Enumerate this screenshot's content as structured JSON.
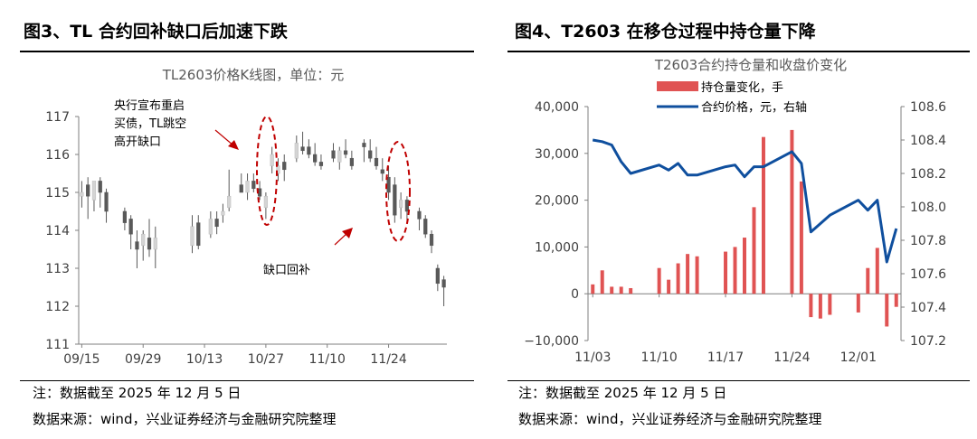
{
  "left": {
    "figure_title": "图3、TL 合约回补缺口后加速下跌",
    "note": "注：数据截至 2025 年 12 月 5 日",
    "source": "数据来源：wind，兴业证券经济与金融研究院整理",
    "annotations": {
      "pboc_lines": [
        "央行宣布重启",
        "买债，TL跳空",
        "高开缺口"
      ],
      "gap_fill": "缺口回补"
    },
    "chart_data": {
      "type": "candlestick",
      "title": "TL2603价格K线图，单位：元",
      "ylim": [
        111,
        117
      ],
      "yticks": [
        "111",
        "112",
        "113",
        "114",
        "115",
        "116",
        "117"
      ],
      "xticks": [
        "09/15",
        "09/29",
        "10/13",
        "10/27",
        "11/10",
        "11/24"
      ],
      "xtick_index": [
        0,
        10,
        20,
        30,
        40,
        50
      ],
      "candles": [
        {
          "o": 114.9,
          "h": 115.3,
          "l": 114.6,
          "c": 115.0
        },
        {
          "o": 115.2,
          "h": 115.4,
          "l": 114.3,
          "c": 114.9
        },
        {
          "o": 114.8,
          "h": 115.1,
          "l": 114.5,
          "c": 115.3
        },
        {
          "o": 115.3,
          "h": 115.4,
          "l": 114.6,
          "c": 115.0
        },
        {
          "o": 115.0,
          "h": 115.1,
          "l": 114.2,
          "c": 114.5
        },
        null,
        null,
        {
          "o": 114.5,
          "h": 114.6,
          "l": 114.0,
          "c": 114.2
        },
        {
          "o": 114.3,
          "h": 114.4,
          "l": 113.5,
          "c": 113.9
        },
        {
          "o": 113.7,
          "h": 114.0,
          "l": 113.0,
          "c": 113.5
        },
        {
          "o": 113.6,
          "h": 114.0,
          "l": 113.2,
          "c": 113.9
        },
        {
          "o": 113.8,
          "h": 114.3,
          "l": 113.3,
          "c": 113.5
        },
        {
          "o": 113.5,
          "h": 114.1,
          "l": 113.0,
          "c": 113.8
        },
        null,
        null,
        null,
        null,
        null,
        {
          "o": 113.6,
          "h": 114.4,
          "l": 113.4,
          "c": 114.1
        },
        {
          "o": 114.2,
          "h": 114.4,
          "l": 113.5,
          "c": 113.6
        },
        null,
        {
          "o": 113.9,
          "h": 114.5,
          "l": 113.8,
          "c": 114.3
        },
        {
          "o": 114.3,
          "h": 114.5,
          "l": 113.9,
          "c": 114.1
        },
        {
          "o": 114.4,
          "h": 114.7,
          "l": 114.2,
          "c": 114.5
        },
        {
          "o": 114.6,
          "h": 115.6,
          "l": 114.5,
          "c": 114.9
        },
        null,
        {
          "o": 115.2,
          "h": 115.5,
          "l": 115.0,
          "c": 115.0
        },
        {
          "o": 115.0,
          "h": 115.5,
          "l": 114.8,
          "c": 115.3
        },
        {
          "o": 115.3,
          "h": 115.5,
          "l": 115.0,
          "c": 115.1
        },
        {
          "o": 115.1,
          "h": 115.3,
          "l": 114.8,
          "c": 114.9
        },
        {
          "o": 114.6,
          "h": 115.0,
          "l": 114.3,
          "c": 114.9
        },
        {
          "o": 115.7,
          "h": 116.2,
          "l": 115.5,
          "c": 116.0
        },
        {
          "o": 115.5,
          "h": 115.9,
          "l": 115.3,
          "c": 115.7
        },
        {
          "o": 115.8,
          "h": 116.0,
          "l": 115.3,
          "c": 115.6
        },
        null,
        {
          "o": 115.9,
          "h": 116.5,
          "l": 115.8,
          "c": 116.3
        },
        {
          "o": 116.2,
          "h": 116.6,
          "l": 116.0,
          "c": 116.1
        },
        {
          "o": 116.2,
          "h": 116.4,
          "l": 115.9,
          "c": 116.0
        },
        {
          "o": 116.0,
          "h": 116.3,
          "l": 115.7,
          "c": 115.8
        },
        {
          "o": 115.8,
          "h": 116.0,
          "l": 115.6,
          "c": 115.7
        },
        null,
        {
          "o": 116.1,
          "h": 116.3,
          "l": 115.8,
          "c": 115.9
        },
        {
          "o": 115.8,
          "h": 116.2,
          "l": 115.6,
          "c": 116.1
        },
        {
          "o": 116.1,
          "h": 116.4,
          "l": 115.9,
          "c": 116.0
        },
        {
          "o": 115.9,
          "h": 116.1,
          "l": 115.6,
          "c": 115.7
        },
        null,
        {
          "o": 116.3,
          "h": 116.4,
          "l": 115.8,
          "c": 116.2
        },
        {
          "o": 116.1,
          "h": 116.4,
          "l": 115.8,
          "c": 115.9
        },
        {
          "o": 115.9,
          "h": 116.2,
          "l": 115.6,
          "c": 115.7
        },
        {
          "o": 115.6,
          "h": 115.9,
          "l": 115.3,
          "c": 115.5
        },
        {
          "o": 115.4,
          "h": 115.7,
          "l": 114.8,
          "c": 115.0
        },
        {
          "o": 115.2,
          "h": 115.4,
          "l": 114.2,
          "c": 114.4
        },
        {
          "o": 114.6,
          "h": 115.0,
          "l": 114.3,
          "c": 114.8
        },
        {
          "o": 114.8,
          "h": 114.9,
          "l": 114.2,
          "c": 114.5
        },
        null,
        {
          "o": 114.5,
          "h": 114.6,
          "l": 114.0,
          "c": 114.3
        },
        {
          "o": 114.3,
          "h": 114.4,
          "l": 113.8,
          "c": 113.9
        },
        {
          "o": 113.9,
          "h": 114.0,
          "l": 113.4,
          "c": 113.6
        },
        {
          "o": 113.0,
          "h": 113.1,
          "l": 112.4,
          "c": 112.6
        },
        {
          "o": 112.7,
          "h": 112.8,
          "l": 112.0,
          "c": 112.5
        }
      ]
    }
  },
  "right": {
    "figure_title": "图4、T2603 在移仓过程中持仓量下降",
    "note": "注：数据截至 2025 年 12 月 5 日",
    "source": "数据来源：wind，兴业证券经济与金融研究院整理",
    "chart_data": {
      "type": "bar+line",
      "title": "T2603合约持仓量和收盘价变化",
      "ylim_left": [
        -10000,
        40000
      ],
      "ylim_right": [
        107.2,
        108.6
      ],
      "yticks_left": [
        "−10,000",
        "0",
        "10,000",
        "20,000",
        "30,000",
        "40,000"
      ],
      "yticks_right": [
        "107.2",
        "107.4",
        "107.6",
        "107.8",
        "108.0",
        "108.2",
        "108.4",
        "108.6"
      ],
      "xticks": [
        "11/03",
        "11/10",
        "11/17",
        "11/24",
        "12/01"
      ],
      "xtick_index": [
        0,
        7,
        14,
        21,
        28
      ],
      "series": [
        {
          "name": "持仓量变化，手",
          "type": "bar",
          "color": "#e05353",
          "values": [
            2000,
            5000,
            1500,
            1500,
            1200,
            null,
            null,
            5500,
            3000,
            6500,
            8500,
            8000,
            null,
            null,
            9000,
            10000,
            12000,
            18500,
            33500,
            null,
            null,
            35000,
            24000,
            -5000,
            -5300,
            -4500,
            null,
            null,
            -4000,
            5500,
            9800,
            -7000,
            -2800
          ]
        },
        {
          "name": "合约价格，元，右轴",
          "type": "line",
          "color": "#0f4f9e",
          "values": [
            108.4,
            108.39,
            108.37,
            108.27,
            108.2,
            null,
            null,
            108.25,
            108.22,
            108.26,
            108.19,
            108.19,
            null,
            null,
            108.24,
            108.25,
            108.18,
            108.24,
            108.24,
            null,
            null,
            108.33,
            108.26,
            107.85,
            107.9,
            107.95,
            null,
            null,
            108.04,
            107.98,
            108.04,
            107.67,
            107.87
          ]
        }
      ]
    }
  }
}
